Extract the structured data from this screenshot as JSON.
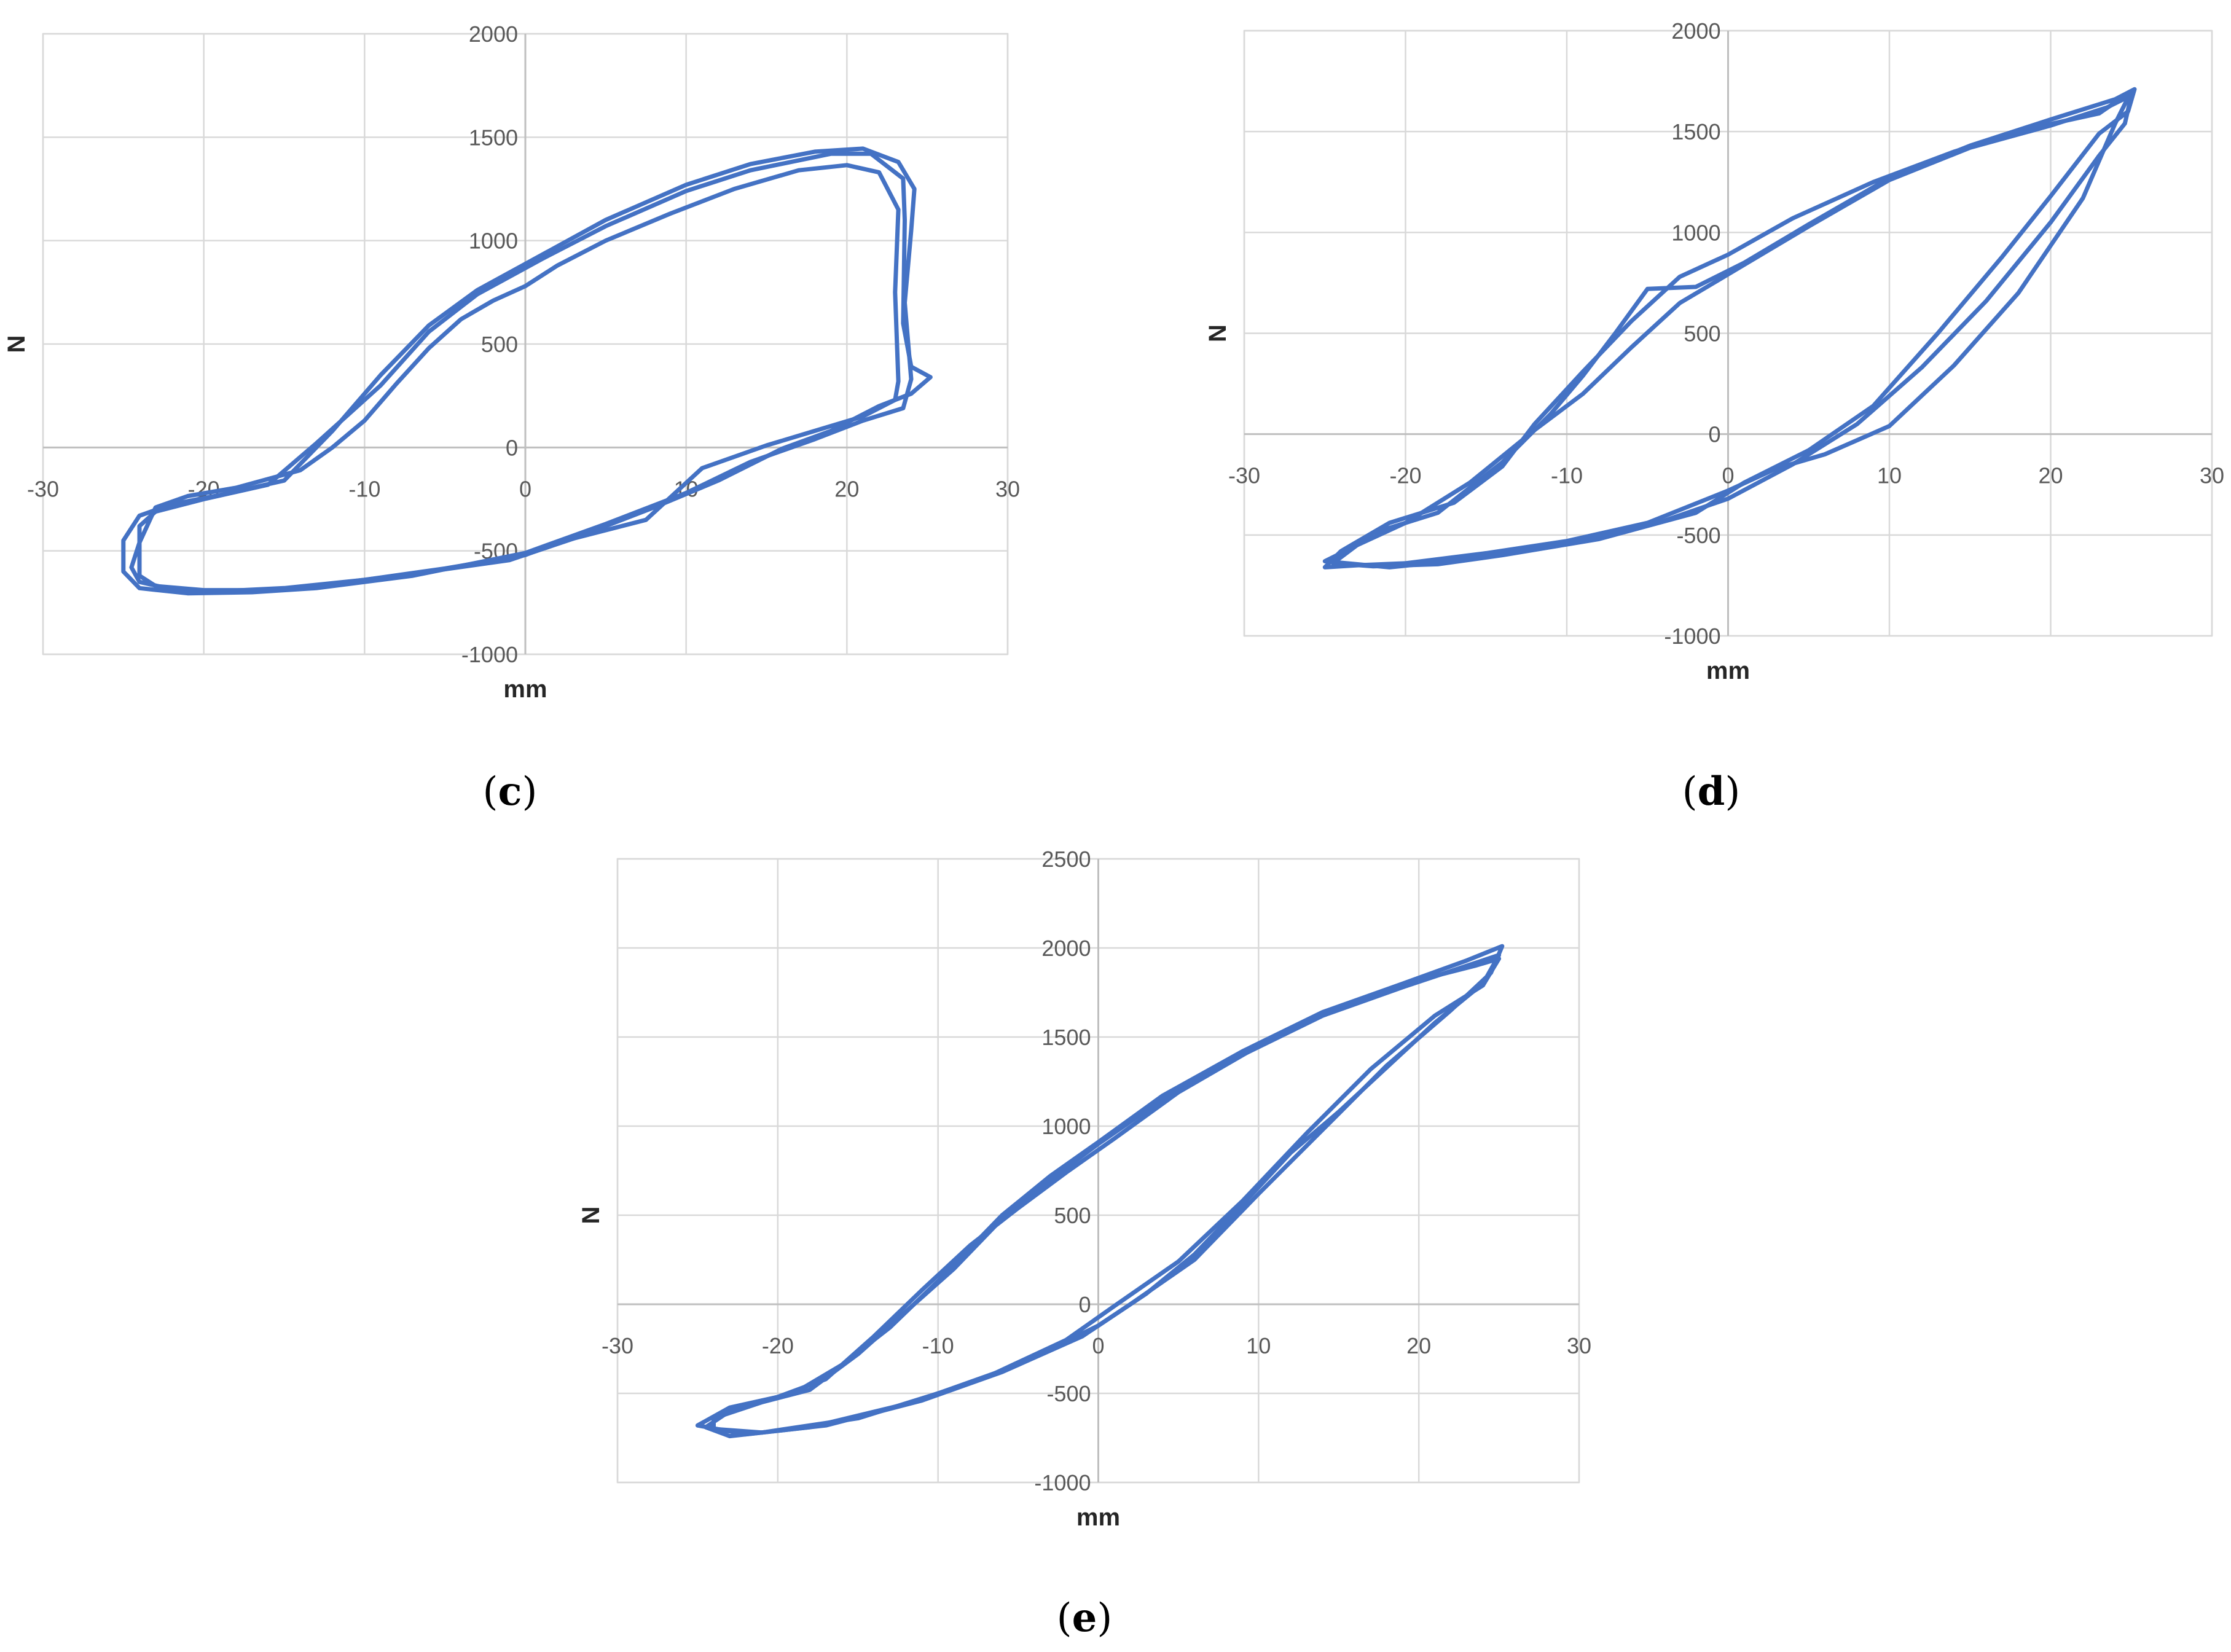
{
  "series_color": "#4472c4",
  "grid_color": "#d9d9d9",
  "chart_data": [
    {
      "id": "c",
      "type": "line",
      "panel_label": "c",
      "xlabel": "mm",
      "ylabel": "N",
      "xlim": [
        -30,
        30
      ],
      "ylim": [
        -1000,
        2000
      ],
      "x_ticks": [
        -30,
        -20,
        -10,
        0,
        10,
        20,
        30
      ],
      "y_ticks": [
        -1000,
        -500,
        0,
        500,
        1000,
        1500,
        2000
      ],
      "grid": true,
      "loops": [
        [
          [
            7.5,
            -350
          ],
          [
            2,
            -460
          ],
          [
            0,
            -520
          ],
          [
            -5,
            -585
          ],
          [
            -10,
            -640
          ],
          [
            -15,
            -680
          ],
          [
            -19,
            -695
          ],
          [
            -22,
            -685
          ],
          [
            -24,
            -650
          ],
          [
            -24.5,
            -580
          ],
          [
            -24,
            -460
          ],
          [
            -23,
            -290
          ],
          [
            -21,
            -235
          ],
          [
            -18,
            -195
          ],
          [
            -14,
            -110
          ],
          [
            -12,
            0
          ],
          [
            -10,
            130
          ],
          [
            -8,
            310
          ],
          [
            -6,
            480
          ],
          [
            -4,
            620
          ],
          [
            -2,
            710
          ],
          [
            0,
            780
          ],
          [
            2,
            880
          ],
          [
            5,
            1000
          ],
          [
            9,
            1130
          ],
          [
            13,
            1250
          ],
          [
            17,
            1340
          ],
          [
            20,
            1365
          ],
          [
            22,
            1330
          ],
          [
            23.2,
            1150
          ],
          [
            23,
            750
          ],
          [
            23.2,
            320
          ],
          [
            23,
            230
          ],
          [
            21,
            150
          ],
          [
            18,
            80
          ],
          [
            15,
            10
          ],
          [
            11,
            -100
          ],
          [
            7.5,
            -350
          ]
        ],
        [
          [
            -24,
            -620
          ],
          [
            -23,
            -670
          ],
          [
            -20,
            -690
          ],
          [
            -16,
            -690
          ],
          [
            -12,
            -660
          ],
          [
            -6,
            -600
          ],
          [
            -1,
            -545
          ],
          [
            3,
            -440
          ],
          [
            8,
            -290
          ],
          [
            12,
            -160
          ],
          [
            16,
            -5
          ],
          [
            19,
            80
          ],
          [
            22,
            200
          ],
          [
            24,
            260
          ],
          [
            25.2,
            340
          ],
          [
            24,
            390
          ],
          [
            23.5,
            600
          ],
          [
            23.6,
            1100
          ],
          [
            23.5,
            1300
          ],
          [
            21.5,
            1420
          ],
          [
            19,
            1420
          ],
          [
            14,
            1340
          ],
          [
            10,
            1240
          ],
          [
            5,
            1070
          ],
          [
            1,
            910
          ],
          [
            -3,
            740
          ],
          [
            -6,
            560
          ],
          [
            -9,
            300
          ],
          [
            -13,
            20
          ],
          [
            -16,
            -180
          ],
          [
            -20,
            -250
          ],
          [
            -23,
            -310
          ],
          [
            -24,
            -380
          ],
          [
            -24,
            -620
          ]
        ],
        [
          [
            -25,
            -600
          ],
          [
            -24,
            -680
          ],
          [
            -21,
            -705
          ],
          [
            -17,
            -700
          ],
          [
            -13,
            -680
          ],
          [
            -7,
            -620
          ],
          [
            0,
            -510
          ],
          [
            5,
            -370
          ],
          [
            10,
            -220
          ],
          [
            14,
            -70
          ],
          [
            18,
            40
          ],
          [
            21,
            130
          ],
          [
            23.5,
            190
          ],
          [
            24,
            330
          ],
          [
            23.6,
            700
          ],
          [
            24,
            1050
          ],
          [
            24.2,
            1250
          ],
          [
            23.2,
            1380
          ],
          [
            21,
            1445
          ],
          [
            18,
            1430
          ],
          [
            14,
            1370
          ],
          [
            10,
            1270
          ],
          [
            5,
            1100
          ],
          [
            1,
            930
          ],
          [
            -3,
            760
          ],
          [
            -6,
            590
          ],
          [
            -9,
            350
          ],
          [
            -12,
            80
          ],
          [
            -15,
            -160
          ],
          [
            -19,
            -230
          ],
          [
            -22,
            -275
          ],
          [
            -24,
            -330
          ],
          [
            -25,
            -450
          ],
          [
            -25,
            -600
          ]
        ]
      ]
    },
    {
      "id": "d",
      "type": "line",
      "panel_label": "d",
      "xlabel": "mm",
      "ylabel": "N",
      "xlim": [
        -30,
        30
      ],
      "ylim": [
        -1000,
        2000
      ],
      "x_ticks": [
        -30,
        -20,
        -10,
        0,
        10,
        20,
        30
      ],
      "y_ticks": [
        -1000,
        -500,
        0,
        500,
        1000,
        1500,
        2000
      ],
      "grid": true,
      "loops": [
        [
          [
            -5,
            -440
          ],
          [
            -10,
            -530
          ],
          [
            -15,
            -590
          ],
          [
            -20,
            -640
          ],
          [
            -23,
            -650
          ],
          [
            -25,
            -660
          ],
          [
            -24,
            -580
          ],
          [
            -21,
            -440
          ],
          [
            -17,
            -340
          ],
          [
            -14,
            -160
          ],
          [
            -12,
            50
          ],
          [
            -9,
            310
          ],
          [
            -6,
            560
          ],
          [
            -3,
            780
          ],
          [
            0,
            890
          ],
          [
            4,
            1070
          ],
          [
            9,
            1250
          ],
          [
            14,
            1400
          ],
          [
            19,
            1520
          ],
          [
            23,
            1590
          ],
          [
            25,
            1700
          ],
          [
            24,
            1540
          ],
          [
            22,
            1170
          ],
          [
            18,
            700
          ],
          [
            14,
            340
          ],
          [
            10,
            40
          ],
          [
            6,
            -100
          ],
          [
            3,
            -170
          ],
          [
            0,
            -280
          ],
          [
            -5,
            -440
          ]
        ],
        [
          [
            -5,
            720
          ],
          [
            -7,
            500
          ],
          [
            -9,
            290
          ],
          [
            -11,
            100
          ],
          [
            -14,
            -140
          ],
          [
            -18,
            -390
          ],
          [
            -22,
            -490
          ],
          [
            -24.5,
            -640
          ],
          [
            -22,
            -655
          ],
          [
            -18,
            -645
          ],
          [
            -14,
            -600
          ],
          [
            -8,
            -520
          ],
          [
            -2,
            -390
          ],
          [
            1,
            -240
          ],
          [
            5,
            -80
          ],
          [
            9,
            140
          ],
          [
            13,
            500
          ],
          [
            17,
            880
          ],
          [
            20,
            1180
          ],
          [
            23,
            1490
          ],
          [
            24.8,
            1600
          ],
          [
            25.2,
            1710
          ],
          [
            24,
            1660
          ],
          [
            20,
            1560
          ],
          [
            15,
            1430
          ],
          [
            10,
            1270
          ],
          [
            5,
            1040
          ],
          [
            1,
            850
          ],
          [
            -2,
            730
          ],
          [
            -5,
            720
          ]
        ],
        [
          [
            -25,
            -630
          ],
          [
            -21,
            -660
          ],
          [
            -16,
            -620
          ],
          [
            -10,
            -540
          ],
          [
            -4,
            -430
          ],
          [
            0,
            -320
          ],
          [
            4,
            -150
          ],
          [
            8,
            50
          ],
          [
            12,
            330
          ],
          [
            16,
            660
          ],
          [
            20,
            1050
          ],
          [
            23,
            1380
          ],
          [
            24.6,
            1540
          ],
          [
            25,
            1680
          ],
          [
            23.5,
            1620
          ],
          [
            20,
            1530
          ],
          [
            15,
            1420
          ],
          [
            10,
            1260
          ],
          [
            5,
            1030
          ],
          [
            1,
            840
          ],
          [
            -3,
            650
          ],
          [
            -6,
            430
          ],
          [
            -9,
            200
          ],
          [
            -12,
            20
          ],
          [
            -16,
            -240
          ],
          [
            -20,
            -440
          ],
          [
            -23,
            -550
          ],
          [
            -25,
            -630
          ]
        ]
      ]
    },
    {
      "id": "e",
      "type": "line",
      "panel_label": "e",
      "xlabel": "mm",
      "ylabel": "N",
      "xlim": [
        -30,
        30
      ],
      "ylim": [
        -1000,
        2500
      ],
      "x_ticks": [
        -30,
        -20,
        -10,
        0,
        10,
        20,
        30
      ],
      "y_ticks": [
        -1000,
        -500,
        0,
        500,
        1000,
        1500,
        2000,
        2500
      ],
      "grid": true,
      "loops": [
        [
          [
            -24,
            -700
          ],
          [
            -21,
            -720
          ],
          [
            -15,
            -640
          ],
          [
            -10,
            -500
          ],
          [
            -5,
            -340
          ],
          [
            0,
            -120
          ],
          [
            3,
            60
          ],
          [
            6,
            280
          ],
          [
            9,
            560
          ],
          [
            12,
            850
          ],
          [
            15,
            1080
          ],
          [
            18,
            1330
          ],
          [
            21,
            1580
          ],
          [
            24,
            1800
          ],
          [
            25,
            1960
          ],
          [
            23,
            1900
          ],
          [
            19,
            1780
          ],
          [
            14,
            1620
          ],
          [
            9,
            1400
          ],
          [
            4,
            1150
          ],
          [
            0,
            900
          ],
          [
            -3,
            700
          ],
          [
            -6,
            480
          ],
          [
            -9,
            200
          ],
          [
            -12,
            -40
          ],
          [
            -15,
            -280
          ],
          [
            -18,
            -480
          ],
          [
            -21,
            -550
          ],
          [
            -24,
            -640
          ],
          [
            -24,
            -700
          ]
        ],
        [
          [
            -25,
            -680
          ],
          [
            -22,
            -730
          ],
          [
            -17,
            -680
          ],
          [
            -11,
            -540
          ],
          [
            -6,
            -380
          ],
          [
            -1,
            -180
          ],
          [
            2,
            0
          ],
          [
            6,
            250
          ],
          [
            10,
            620
          ],
          [
            14,
            980
          ],
          [
            18,
            1340
          ],
          [
            22,
            1650
          ],
          [
            24.5,
            1860
          ],
          [
            25.2,
            2010
          ],
          [
            23,
            1930
          ],
          [
            19,
            1800
          ],
          [
            14,
            1640
          ],
          [
            9,
            1420
          ],
          [
            4,
            1170
          ],
          [
            0,
            910
          ],
          [
            -3,
            720
          ],
          [
            -6,
            500
          ],
          [
            -10,
            130
          ],
          [
            -13,
            -130
          ],
          [
            -16,
            -340
          ],
          [
            -19,
            -500
          ],
          [
            -23,
            -580
          ],
          [
            -25,
            -680
          ]
        ],
        [
          [
            -23,
            -740
          ],
          [
            -18,
            -690
          ],
          [
            -12,
            -560
          ],
          [
            -7,
            -410
          ],
          [
            -2,
            -200
          ],
          [
            1,
            -10
          ],
          [
            5,
            240
          ],
          [
            9,
            580
          ],
          [
            13,
            960
          ],
          [
            17,
            1320
          ],
          [
            21,
            1620
          ],
          [
            24,
            1790
          ],
          [
            25,
            1940
          ],
          [
            23.5,
            1900
          ],
          [
            20,
            1820
          ],
          [
            15,
            1670
          ],
          [
            10,
            1450
          ],
          [
            5,
            1190
          ],
          [
            1,
            930
          ],
          [
            -2,
            740
          ],
          [
            -5,
            540
          ],
          [
            -8,
            330
          ],
          [
            -11,
            80
          ],
          [
            -14,
            -180
          ],
          [
            -17,
            -420
          ],
          [
            -20,
            -520
          ],
          [
            -23,
            -600
          ],
          [
            -24.5,
            -690
          ],
          [
            -23,
            -740
          ]
        ]
      ]
    }
  ]
}
